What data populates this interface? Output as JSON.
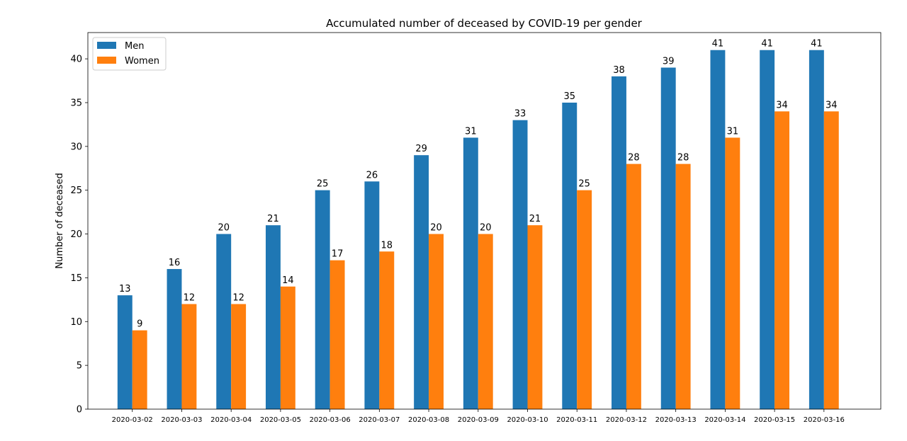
{
  "chart_data": {
    "type": "bar",
    "title": "Accumulated number of deceased by COVID-19 per gender",
    "xlabel": "",
    "ylabel": "Number of deceased",
    "categories": [
      "2020-03-02",
      "2020-03-03",
      "2020-03-04",
      "2020-03-05",
      "2020-03-06",
      "2020-03-07",
      "2020-03-08",
      "2020-03-09",
      "2020-03-10",
      "2020-03-11",
      "2020-03-12",
      "2020-03-13",
      "2020-03-14",
      "2020-03-15",
      "2020-03-16"
    ],
    "series": [
      {
        "name": "Men",
        "color": "#1f77b4",
        "values": [
          13,
          16,
          20,
          21,
          25,
          26,
          29,
          31,
          33,
          35,
          38,
          39,
          41,
          41,
          41
        ]
      },
      {
        "name": "Women",
        "color": "#ff7f0e",
        "values": [
          9,
          12,
          12,
          14,
          17,
          18,
          20,
          20,
          21,
          25,
          28,
          28,
          31,
          34,
          34
        ]
      }
    ],
    "ylim": [
      0,
      43
    ],
    "yticks": [
      0,
      5,
      10,
      15,
      20,
      25,
      30,
      35,
      40
    ],
    "grid": false,
    "legend_position": "top-left",
    "data_labels": true
  }
}
